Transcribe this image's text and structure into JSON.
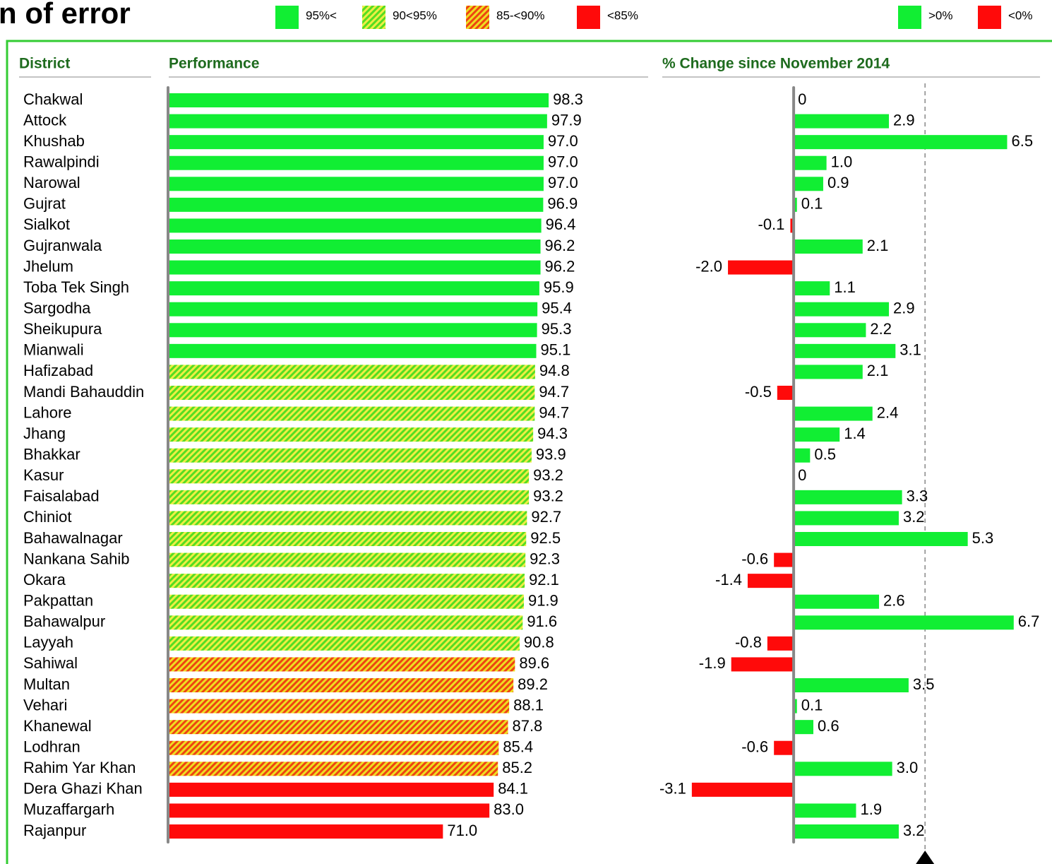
{
  "title": "n of error",
  "chart_data": [
    {
      "type": "bar",
      "orientation": "horizontal",
      "column_headers": [
        "District",
        "Performance"
      ],
      "categories": [
        "Chakwal",
        "Attock",
        "Khushab",
        "Rawalpindi",
        "Narowal",
        "Gujrat",
        "Sialkot",
        "Gujranwala",
        "Jhelum",
        "Toba Tek Singh",
        "Sargodha",
        "Sheikupura",
        "Mianwali",
        "Hafizabad",
        "Mandi Bahauddin",
        "Lahore",
        "Jhang",
        "Bhakkar",
        "Kasur",
        "Faisalabad",
        "Chiniot",
        "Bahawalnagar",
        "Nankana Sahib",
        "Okara",
        "Pakpattan",
        "Bahawalpur",
        "Layyah",
        "Sahiwal",
        "Multan",
        "Vehari",
        "Khanewal",
        "Lodhran",
        "Rahim Yar Khan",
        "Dera Ghazi Khan",
        "Muzaffargarh",
        "Rajanpur"
      ],
      "xlim": [
        0,
        124
      ],
      "series": [
        {
          "name": "95%<",
          "color": "#11ee33",
          "values": [
            98.3,
            97.9,
            97.0,
            97.0,
            97.0,
            96.9,
            96.4,
            96.2,
            96.2,
            95.9,
            95.4,
            95.3,
            95.1,
            null,
            null,
            null,
            null,
            null,
            null,
            null,
            null,
            null,
            null,
            null,
            null,
            null,
            null,
            null,
            null,
            null,
            null,
            null,
            null,
            null,
            null,
            null
          ],
          "value_labels": [
            "98.3",
            "97.9",
            "97.0",
            "97.0",
            "97.0",
            "96.9",
            "96.4",
            "96.2",
            "96.2",
            "95.9",
            "95.4",
            "95.3",
            "95.1",
            null,
            null,
            null,
            null,
            null,
            null,
            null,
            null,
            null,
            null,
            null,
            null,
            null,
            null,
            null,
            null,
            null,
            null,
            null,
            null,
            null,
            null,
            null
          ]
        },
        {
          "name": "90<95%",
          "color": "#99e62a",
          "hatch": [
            "#55dd22",
            "#eeee44"
          ],
          "values": [
            null,
            null,
            null,
            null,
            null,
            null,
            null,
            null,
            null,
            null,
            null,
            null,
            null,
            94.8,
            94.7,
            94.7,
            94.3,
            93.9,
            93.2,
            93.2,
            92.7,
            92.5,
            92.3,
            92.1,
            91.9,
            91.6,
            90.8,
            null,
            null,
            null,
            null,
            null,
            null,
            null,
            null,
            null
          ],
          "value_labels": [
            null,
            null,
            null,
            null,
            null,
            null,
            null,
            null,
            null,
            null,
            null,
            null,
            null,
            "94.8",
            "94.7",
            "94.7",
            "94.3",
            "93.9",
            "93.2",
            "93.2",
            "92.7",
            "92.5",
            "92.3",
            "92.1",
            "91.9",
            "91.6",
            "90.8",
            null,
            null,
            null,
            null,
            null,
            null,
            null,
            null,
            null
          ]
        },
        {
          "name": "85-<90%",
          "color": "#f08a10",
          "hatch": [
            "#ee4411",
            "#eedd22"
          ],
          "values": [
            null,
            null,
            null,
            null,
            null,
            null,
            null,
            null,
            null,
            null,
            null,
            null,
            null,
            null,
            null,
            null,
            null,
            null,
            null,
            null,
            null,
            null,
            null,
            null,
            null,
            null,
            null,
            89.6,
            89.2,
            88.1,
            87.8,
            85.4,
            85.2,
            null,
            null,
            null
          ],
          "value_labels": [
            null,
            null,
            null,
            null,
            null,
            null,
            null,
            null,
            null,
            null,
            null,
            null,
            null,
            null,
            null,
            null,
            null,
            null,
            null,
            null,
            null,
            null,
            null,
            null,
            null,
            null,
            null,
            "89.6",
            "89.2",
            "88.1",
            "87.8",
            "85.4",
            "85.2",
            null,
            null,
            null
          ]
        },
        {
          "name": "<85%",
          "color": "#ff0a0a",
          "values": [
            null,
            null,
            null,
            null,
            null,
            null,
            null,
            null,
            null,
            null,
            null,
            null,
            null,
            null,
            null,
            null,
            null,
            null,
            null,
            null,
            null,
            null,
            null,
            null,
            null,
            null,
            null,
            null,
            null,
            null,
            null,
            null,
            null,
            84.1,
            83.0,
            71.0
          ],
          "value_labels": [
            null,
            null,
            null,
            null,
            null,
            null,
            null,
            null,
            null,
            null,
            null,
            null,
            null,
            null,
            null,
            null,
            null,
            null,
            null,
            null,
            null,
            null,
            null,
            null,
            null,
            null,
            null,
            null,
            null,
            null,
            null,
            null,
            null,
            "84.1",
            "83.0",
            "71.0"
          ]
        }
      ]
    },
    {
      "type": "bar",
      "orientation": "horizontal",
      "column_headers": [
        "% Change since November 2014"
      ],
      "xlim": [
        -4,
        7.5
      ],
      "reference_line": 4,
      "series": [
        {
          "name": ">0%",
          "color": "#11ee33",
          "values": [
            0,
            2.9,
            6.5,
            1.0,
            0.9,
            0.1,
            null,
            2.1,
            null,
            1.1,
            2.9,
            2.2,
            3.1,
            2.1,
            null,
            2.4,
            1.4,
            0.5,
            0,
            3.3,
            3.2,
            5.3,
            null,
            null,
            2.6,
            6.7,
            null,
            null,
            3.5,
            0.1,
            0.6,
            null,
            3.0,
            null,
            1.9,
            3.2
          ],
          "value_labels": [
            "0",
            "2.9",
            "6.5",
            "1.0",
            "0.9",
            "0.1",
            null,
            "2.1",
            null,
            "1.1",
            "2.9",
            "2.2",
            "3.1",
            "2.1",
            null,
            "2.4",
            "1.4",
            "0.5",
            "0",
            "3.3",
            "3.2",
            "5.3",
            null,
            null,
            "2.6",
            "6.7",
            null,
            null,
            "3.5",
            "0.1",
            "0.6",
            null,
            "3.0",
            null,
            "1.9",
            "3.2"
          ]
        },
        {
          "name": "<0%",
          "color": "#ff0a0a",
          "values": [
            null,
            null,
            null,
            null,
            null,
            null,
            -0.1,
            null,
            -2.0,
            null,
            null,
            null,
            null,
            null,
            -0.5,
            null,
            null,
            null,
            null,
            null,
            null,
            null,
            -0.6,
            -1.4,
            null,
            null,
            -0.8,
            -1.9,
            null,
            null,
            null,
            -0.6,
            null,
            -3.1,
            null,
            null
          ],
          "value_labels": [
            null,
            null,
            null,
            null,
            null,
            null,
            "-0.1",
            null,
            "-2.0",
            null,
            null,
            null,
            null,
            null,
            "-0.5",
            null,
            null,
            null,
            null,
            null,
            null,
            null,
            "-0.6",
            "-1.4",
            null,
            null,
            "-0.8",
            "-1.9",
            null,
            null,
            null,
            "-0.6",
            null,
            "-3.1",
            null,
            null
          ]
        }
      ]
    }
  ]
}
